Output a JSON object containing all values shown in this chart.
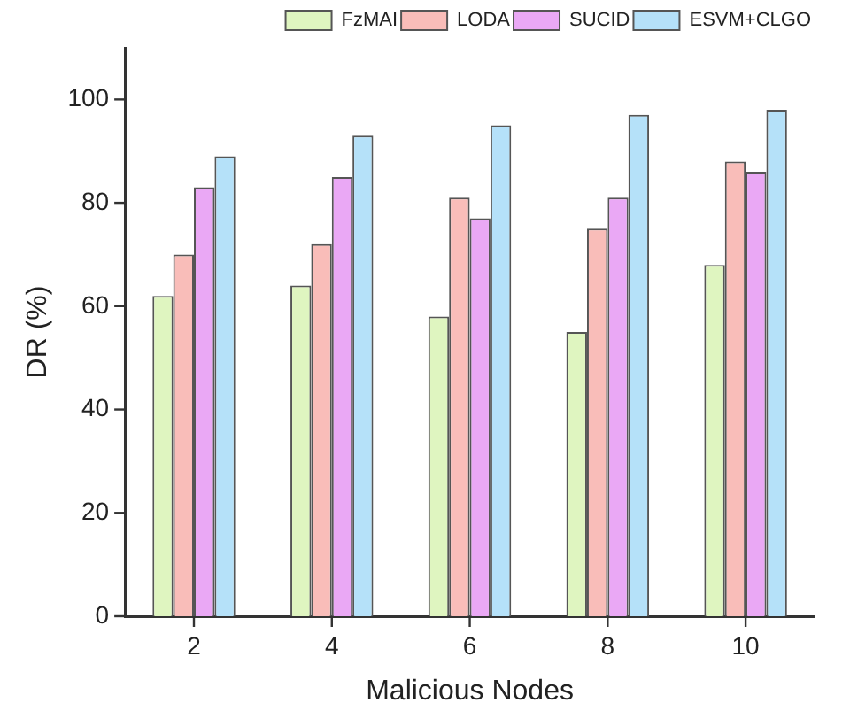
{
  "chart_data": {
    "type": "bar",
    "xlabel": "Malicious Nodes",
    "ylabel": "DR (%)",
    "categories": [
      "2",
      "4",
      "6",
      "8",
      "10"
    ],
    "series": [
      {
        "name": "FzMAI",
        "color": "#dff5c0",
        "values": [
          62,
          64,
          58,
          55,
          68
        ]
      },
      {
        "name": "LODA",
        "color": "#f9bdb9",
        "values": [
          70,
          72,
          81,
          75,
          88
        ]
      },
      {
        "name": "SUCID",
        "color": "#eaa8f5",
        "values": [
          83,
          85,
          77,
          81,
          86
        ]
      },
      {
        "name": "ESVM+CLGO",
        "color": "#b5e1f9",
        "values": [
          89,
          93,
          95,
          97,
          98
        ]
      }
    ],
    "ylim": [
      0,
      110
    ],
    "yticks": [
      0,
      20,
      40,
      60,
      80,
      100
    ],
    "grid": false,
    "legend": "top right"
  }
}
